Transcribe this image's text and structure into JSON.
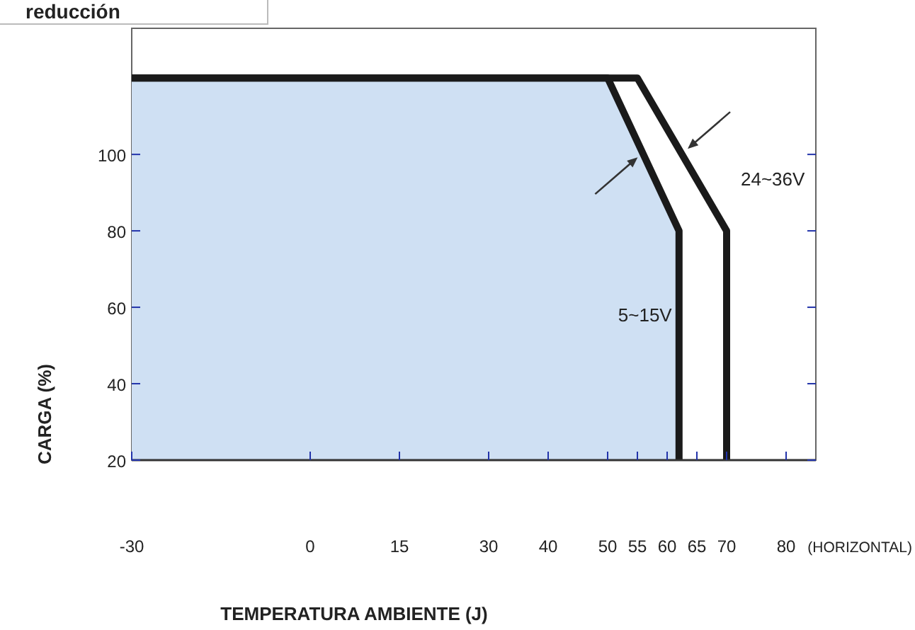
{
  "chart_data": {
    "type": "line",
    "title": "reducción",
    "xlabel": "TEMPERATURA AMBIENTE (J)",
    "ylabel": "CARGA (%)",
    "annotations": [
      "(HORIZONTAL)"
    ],
    "xlim": [
      -30,
      85
    ],
    "xticks": [
      -30,
      0,
      15,
      30,
      40,
      50,
      55,
      60,
      65,
      70,
      80
    ],
    "ylim": [
      20,
      133
    ],
    "yticks": [
      20,
      40,
      60,
      80,
      100
    ],
    "grid": false,
    "legend": false,
    "series": [
      {
        "name": "5~15V",
        "type": "area",
        "color": "#1a1a1a",
        "x": [
          -30,
          50,
          62,
          62
        ],
        "values": [
          120,
          120,
          80,
          20
        ]
      },
      {
        "name": "24~36V",
        "color": "#1a1a1a",
        "x": [
          -30,
          55,
          70,
          70
        ],
        "values": [
          120,
          120,
          80,
          20
        ]
      }
    ]
  }
}
